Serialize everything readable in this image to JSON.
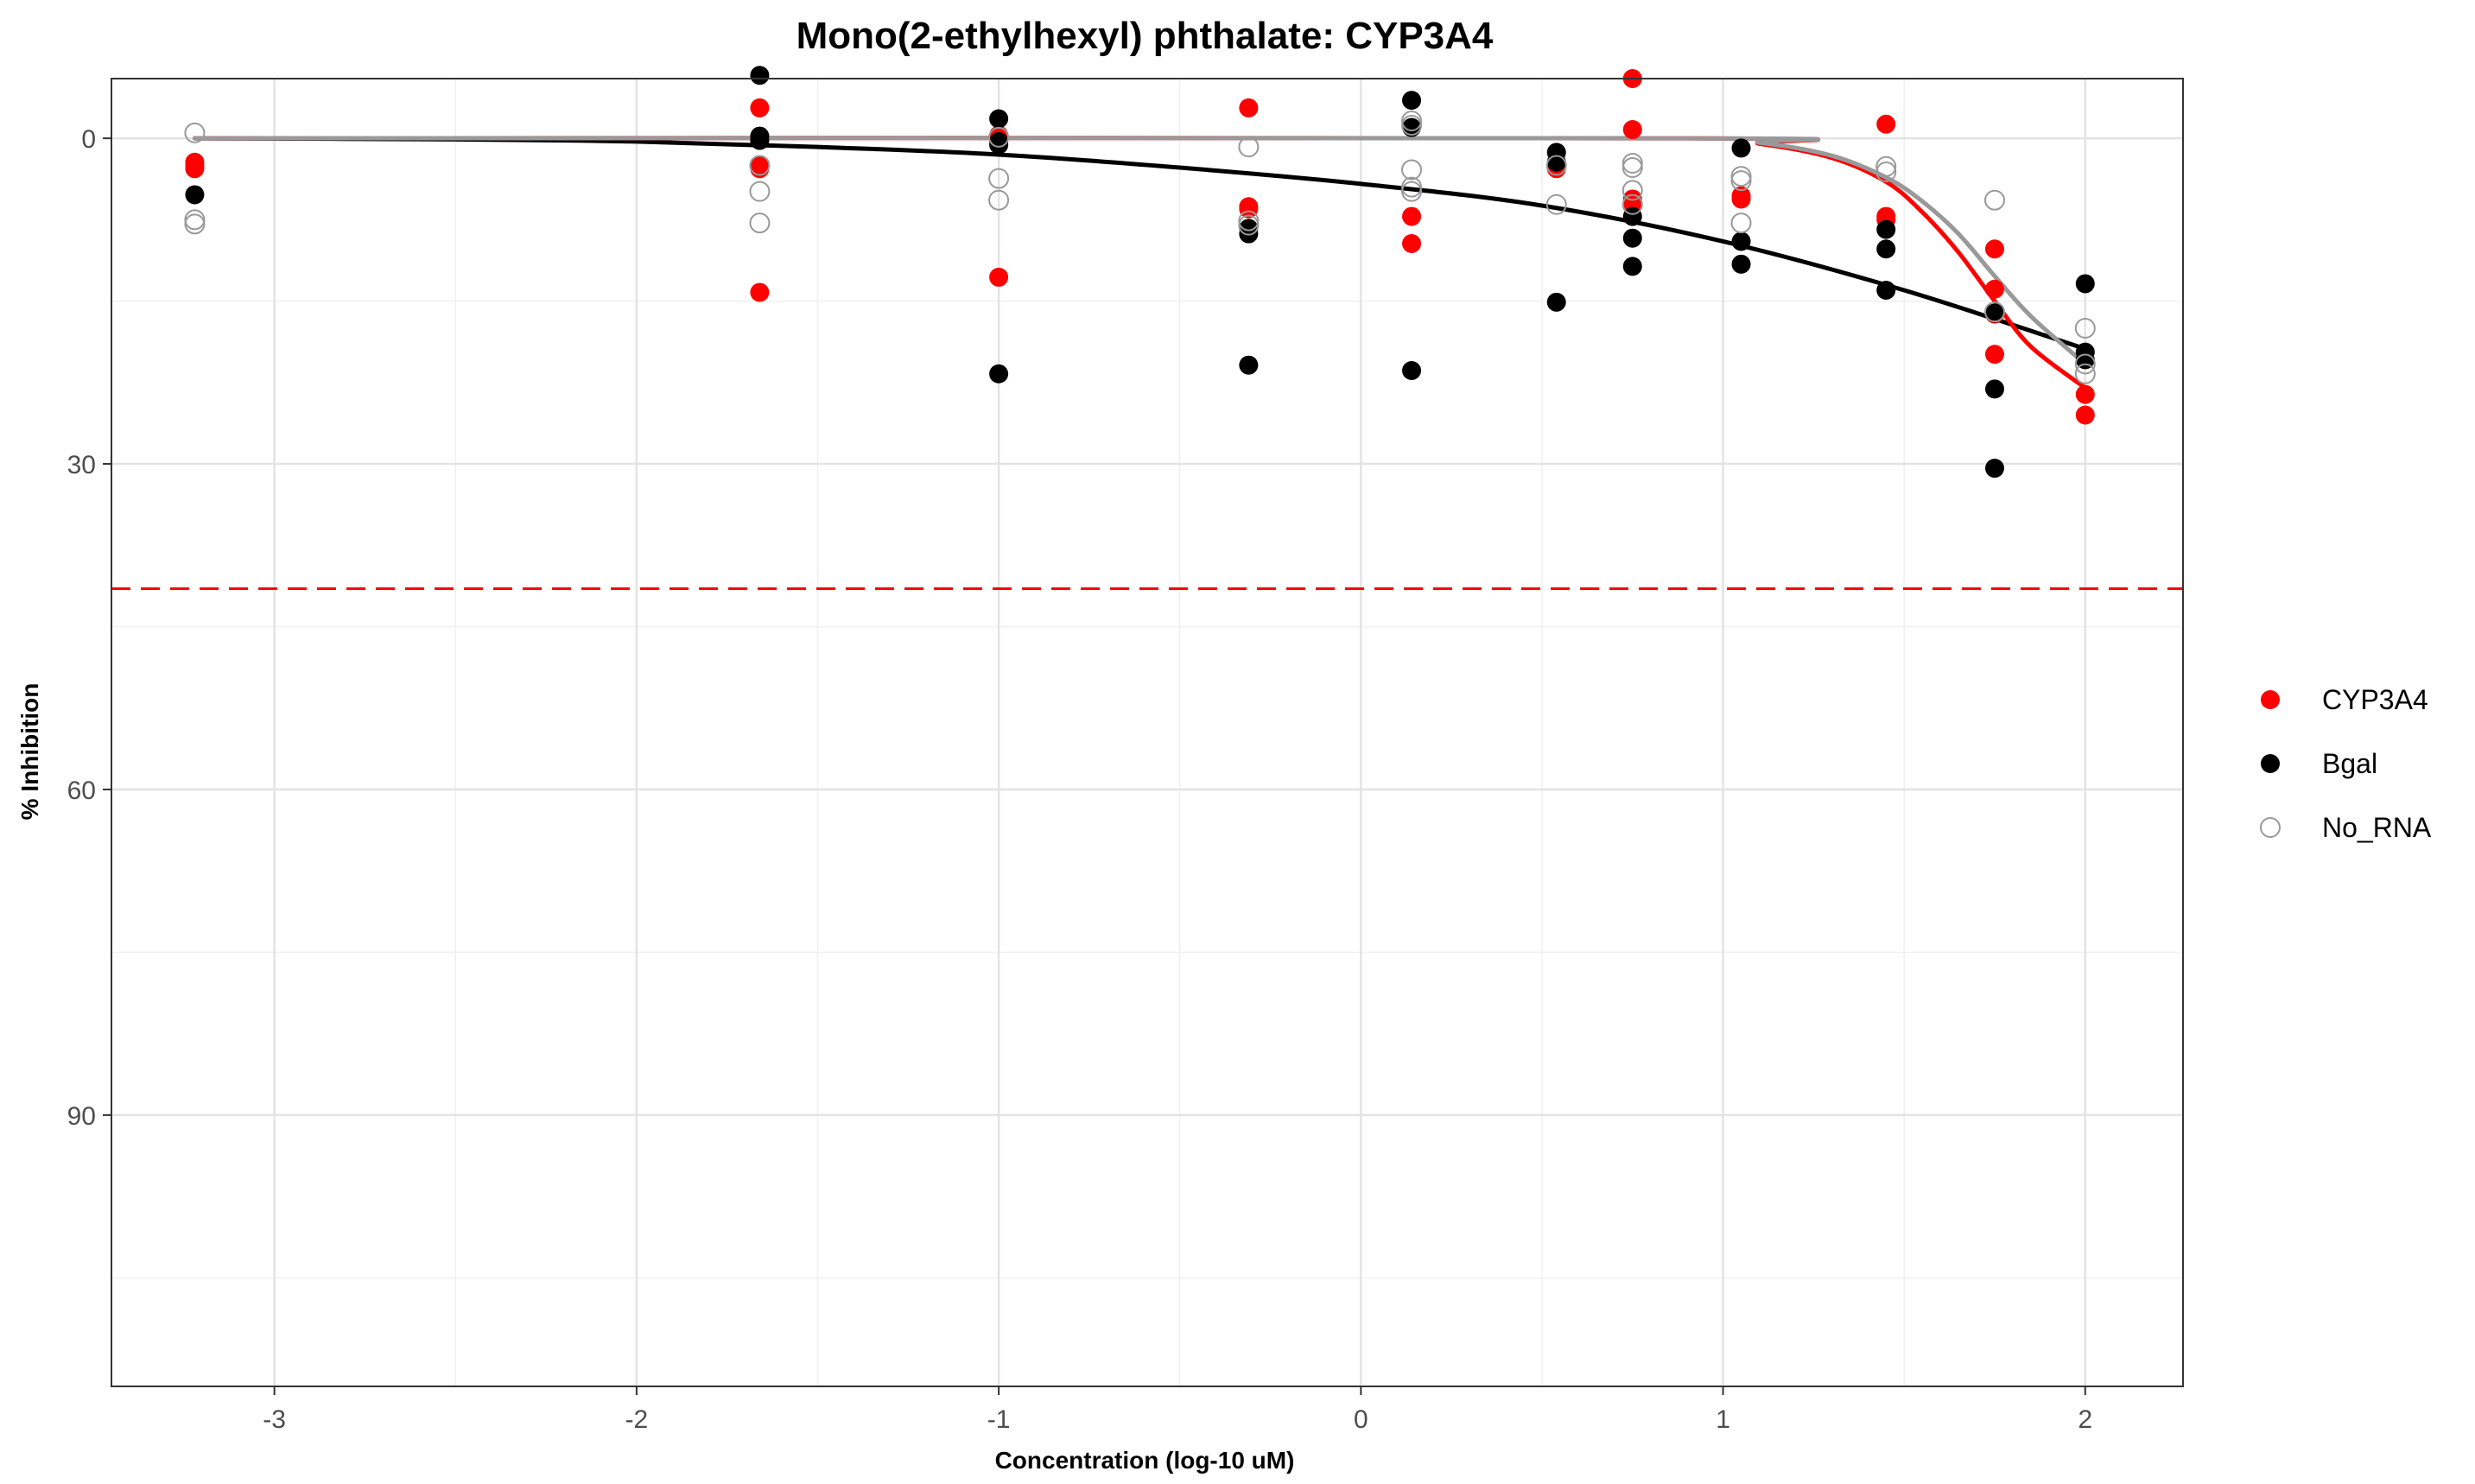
{
  "chart_data": {
    "type": "scatter",
    "title": "Mono(2-ethylhexyl) phthalate: CYP3A4",
    "xlabel": "Concentration (log-10 uM)",
    "ylabel": "% Inhibition",
    "xlim": [
      -3.45,
      2.27
    ],
    "ylim": [
      115,
      -5.5
    ],
    "y_reversed": true,
    "x_ticks": [
      -3,
      -2,
      -1,
      0,
      1,
      2
    ],
    "x_tick_labels": [
      "-3",
      "-2",
      "-1",
      "0",
      "1",
      "2"
    ],
    "y_ticks": [
      0,
      30,
      60,
      90
    ],
    "y_tick_labels": [
      "0",
      "30",
      "60",
      "90"
    ],
    "grid": true,
    "legend_position": "right",
    "threshold_line": {
      "y": 41.5,
      "color": "#ff0000",
      "style": "dashed"
    },
    "series": [
      {
        "name": "CYP3A4",
        "color": "#ff0000",
        "marker": "filled-circle",
        "points": [
          [
            -3.22,
            2.2
          ],
          [
            -3.22,
            2.5
          ],
          [
            -3.22,
            2.8
          ],
          [
            -1.66,
            -2.8
          ],
          [
            -1.66,
            2.5
          ],
          [
            -1.66,
            2.8
          ],
          [
            -1.66,
            14.2
          ],
          [
            -1.0,
            -0.3
          ],
          [
            -1.0,
            12.8
          ],
          [
            -0.31,
            -2.8
          ],
          [
            -0.31,
            6.3
          ],
          [
            -0.31,
            6.5
          ],
          [
            0.14,
            7.2
          ],
          [
            0.14,
            9.7
          ],
          [
            0.54,
            2.8
          ],
          [
            0.75,
            -5.5
          ],
          [
            0.75,
            -0.8
          ],
          [
            0.75,
            5.6
          ],
          [
            0.75,
            6.1
          ],
          [
            1.05,
            5.3
          ],
          [
            1.05,
            5.6
          ],
          [
            1.45,
            -1.3
          ],
          [
            1.45,
            7.2
          ],
          [
            1.45,
            7.5
          ],
          [
            1.75,
            10.2
          ],
          [
            1.75,
            13.9
          ],
          [
            1.75,
            16.2
          ],
          [
            1.75,
            19.9
          ],
          [
            2.0,
            23.6
          ],
          [
            2.0,
            25.5
          ]
        ],
        "curve": [
          [
            -3.22,
            0.0
          ],
          [
            0.9,
            0.0
          ],
          [
            1.1,
            0.5
          ],
          [
            1.3,
            1.8
          ],
          [
            1.45,
            4.0
          ],
          [
            1.55,
            6.8
          ],
          [
            1.65,
            10.5
          ],
          [
            1.75,
            15.0
          ],
          [
            1.85,
            19.2
          ],
          [
            2.0,
            23.0
          ]
        ]
      },
      {
        "name": "Bgal",
        "color": "#000000",
        "marker": "filled-circle",
        "points": [
          [
            -3.22,
            5.2
          ],
          [
            -1.66,
            -5.8
          ],
          [
            -1.66,
            -0.2
          ],
          [
            -1.66,
            0.2
          ],
          [
            -1.0,
            -1.8
          ],
          [
            -1.0,
            0.3
          ],
          [
            -1.0,
            0.6
          ],
          [
            -1.0,
            21.7
          ],
          [
            -0.31,
            8.3
          ],
          [
            -0.31,
            8.8
          ],
          [
            -0.31,
            20.9
          ],
          [
            0.14,
            -3.5
          ],
          [
            0.14,
            -1.0
          ],
          [
            0.14,
            21.4
          ],
          [
            0.54,
            1.3
          ],
          [
            0.54,
            2.2
          ],
          [
            0.54,
            15.1
          ],
          [
            0.75,
            7.2
          ],
          [
            0.75,
            9.2
          ],
          [
            0.75,
            11.8
          ],
          [
            1.05,
            0.9
          ],
          [
            1.05,
            9.5
          ],
          [
            1.05,
            11.6
          ],
          [
            1.45,
            8.4
          ],
          [
            1.45,
            10.2
          ],
          [
            1.45,
            14.0
          ],
          [
            1.75,
            16.1
          ],
          [
            1.75,
            23.1
          ],
          [
            1.75,
            30.4
          ],
          [
            2.0,
            13.4
          ],
          [
            2.0,
            19.7
          ],
          [
            2.0,
            20.4
          ]
        ],
        "curve": [
          [
            -3.22,
            0.0
          ],
          [
            -2.5,
            0.1
          ],
          [
            -2.0,
            0.3
          ],
          [
            -1.5,
            0.8
          ],
          [
            -1.0,
            1.5
          ],
          [
            -0.5,
            2.7
          ],
          [
            0.0,
            4.2
          ],
          [
            0.5,
            6.2
          ],
          [
            1.0,
            9.5
          ],
          [
            1.5,
            14.0
          ],
          [
            2.0,
            19.4
          ]
        ]
      },
      {
        "name": "No_RNA",
        "color": "#999999",
        "marker": "open-circle",
        "points": [
          [
            -3.22,
            -0.5
          ],
          [
            -3.22,
            7.5
          ],
          [
            -3.22,
            7.9
          ],
          [
            -1.66,
            2.5
          ],
          [
            -1.66,
            4.9
          ],
          [
            -1.66,
            7.8
          ],
          [
            -1.0,
            -0.1
          ],
          [
            -1.0,
            3.7
          ],
          [
            -1.0,
            5.7
          ],
          [
            -0.31,
            0.8
          ],
          [
            -0.31,
            7.6
          ],
          [
            -0.31,
            8.0
          ],
          [
            0.14,
            -1.6
          ],
          [
            0.14,
            -1.2
          ],
          [
            0.14,
            2.9
          ],
          [
            0.14,
            4.5
          ],
          [
            0.14,
            4.9
          ],
          [
            0.54,
            2.5
          ],
          [
            0.54,
            6.1
          ],
          [
            0.75,
            2.3
          ],
          [
            0.75,
            2.7
          ],
          [
            0.75,
            4.8
          ],
          [
            0.75,
            6.1
          ],
          [
            1.05,
            3.5
          ],
          [
            1.05,
            3.9
          ],
          [
            1.05,
            7.8
          ],
          [
            1.45,
            2.6
          ],
          [
            1.45,
            3.1
          ],
          [
            1.75,
            5.7
          ],
          [
            1.75,
            16.0
          ],
          [
            2.0,
            17.5
          ],
          [
            2.0,
            20.8
          ],
          [
            2.0,
            21.7
          ]
        ],
        "curve": [
          [
            -3.22,
            0.0
          ],
          [
            0.9,
            0.0
          ],
          [
            1.1,
            0.4
          ],
          [
            1.3,
            1.6
          ],
          [
            1.45,
            3.6
          ],
          [
            1.55,
            5.8
          ],
          [
            1.65,
            8.8
          ],
          [
            1.75,
            12.7
          ],
          [
            1.85,
            16.4
          ],
          [
            2.0,
            20.8
          ]
        ]
      }
    ]
  }
}
